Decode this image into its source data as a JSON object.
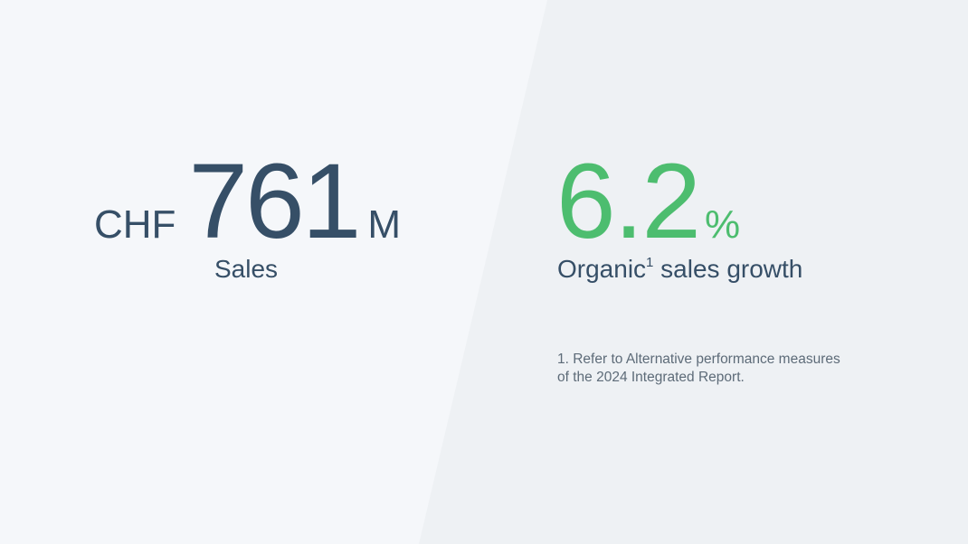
{
  "kpis": [
    {
      "prefix": "CHF",
      "value": "761",
      "suffix": "M",
      "label": "Sales",
      "color": "#364f67"
    },
    {
      "value": "6.2",
      "suffix": "%",
      "label_main": "Organic",
      "label_sup": "1",
      "label_rest": " sales growth",
      "color": "#4dbd6f"
    }
  ],
  "footnote": {
    "line1": "1. Refer to Alternative performance measures",
    "line2": "of the 2024 Integrated Report."
  },
  "colors": {
    "background_left": "#f5f7fa",
    "background_right": "#eef1f4",
    "text_dark": "#364f67",
    "accent_green": "#4dbd6f"
  }
}
